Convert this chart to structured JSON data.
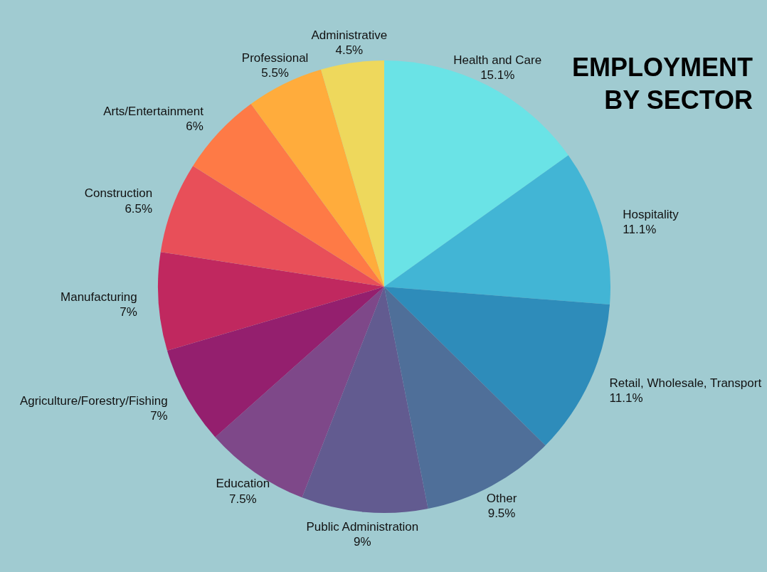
{
  "chart_data": {
    "type": "pie",
    "title": "EMPLOYMENT BY SECTOR",
    "categories": [
      "Health and Care",
      "Hospitality",
      "Retail, Wholesale, Transport",
      "Other",
      "Public Administration",
      "Education",
      "Agriculture/Forestry/Fishing",
      "Manufacturing",
      "Construction",
      "Arts/Entertainment",
      "Professional",
      "Administrative"
    ],
    "values": [
      15.1,
      11.1,
      11.1,
      9.5,
      9,
      7.5,
      7,
      7,
      6.5,
      6,
      5.5,
      4.5
    ],
    "value_labels": [
      "15.1%",
      "11.1%",
      "11.1%",
      "9.5%",
      "9%",
      "7.5%",
      "7%",
      "7%",
      "6.5%",
      "6%",
      "5.5%",
      "4.5%"
    ],
    "colors": [
      "#6ae3e6",
      "#42b5d5",
      "#2e8cba",
      "#4f6f99",
      "#625b90",
      "#7e4889",
      "#941f6e",
      "#c0285f",
      "#e84f59",
      "#fe7a46",
      "#ffac3c",
      "#eed85c"
    ]
  }
}
